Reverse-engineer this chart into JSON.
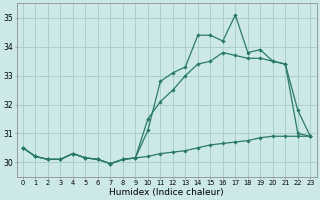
{
  "xlabel": "Humidex (Indice chaleur)",
  "background_color": "#cde8e8",
  "grid_color": "#aacfcf",
  "line_color": "#2a7a6a",
  "x": [
    0,
    1,
    2,
    3,
    4,
    5,
    6,
    7,
    8,
    9,
    10,
    11,
    12,
    13,
    14,
    15,
    16,
    17,
    18,
    19,
    20,
    21,
    22,
    23
  ],
  "line1": [
    30.5,
    30.2,
    30.1,
    30.1,
    30.3,
    30.15,
    30.1,
    29.95,
    30.1,
    30.15,
    31.1,
    32.8,
    33.1,
    33.3,
    34.4,
    34.4,
    34.2,
    35.1,
    33.8,
    33.9,
    33.5,
    33.4,
    31.8,
    30.9
  ],
  "line2": [
    30.5,
    30.2,
    30.1,
    30.1,
    30.3,
    30.15,
    30.1,
    29.95,
    30.1,
    30.15,
    31.5,
    32.1,
    32.5,
    33.0,
    33.4,
    33.5,
    33.8,
    33.7,
    33.6,
    33.6,
    33.5,
    33.4,
    31.0,
    30.9
  ],
  "line3": [
    30.5,
    30.2,
    30.1,
    30.1,
    30.3,
    30.15,
    30.1,
    29.95,
    30.1,
    30.15,
    30.2,
    30.3,
    30.35,
    30.4,
    30.5,
    30.6,
    30.65,
    30.7,
    30.75,
    30.85,
    30.9,
    30.9,
    30.9,
    30.9
  ],
  "ylim": [
    29.5,
    35.5
  ],
  "xlim": [
    -0.5,
    23.5
  ],
  "yticks": [
    30,
    31,
    32,
    33,
    34,
    35
  ],
  "xticks": [
    0,
    1,
    2,
    3,
    4,
    5,
    6,
    7,
    8,
    9,
    10,
    11,
    12,
    13,
    14,
    15,
    16,
    17,
    18,
    19,
    20,
    21,
    22,
    23
  ],
  "xtick_labels": [
    "0",
    "1",
    "2",
    "3",
    "4",
    "5",
    "6",
    "7",
    "8",
    "9",
    "10",
    "11",
    "12",
    "13",
    "14",
    "15",
    "16",
    "17",
    "18",
    "19",
    "20",
    "21",
    "22",
    "23"
  ]
}
